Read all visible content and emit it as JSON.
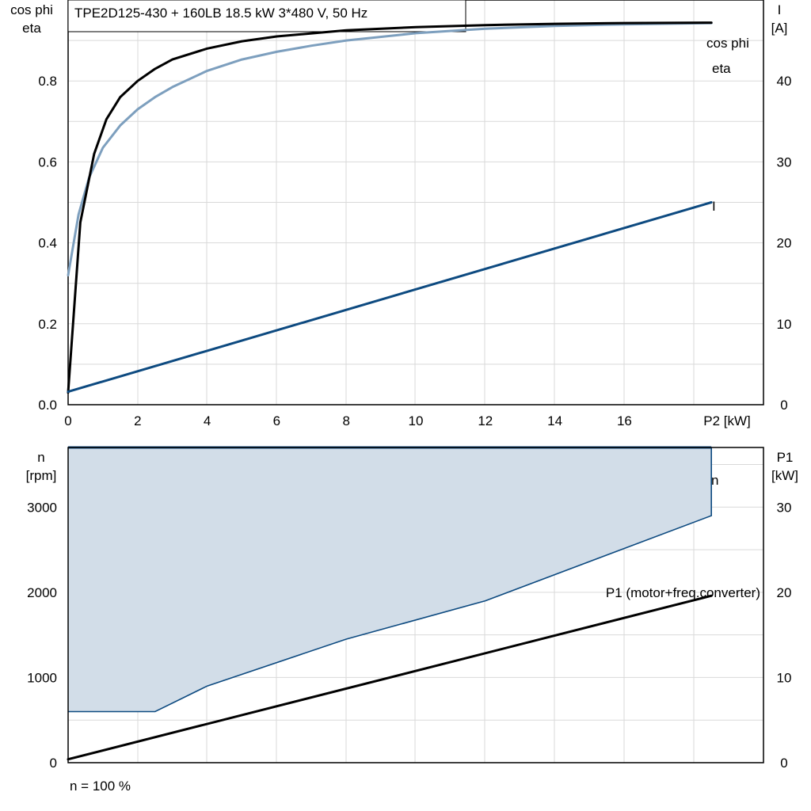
{
  "colors": {
    "cosphi": "#7d9fbe",
    "eta": "#000000",
    "current": "#0d4a80",
    "speed": "#0d4a80",
    "speed_fill": "#d2dde8",
    "p1": "#000000",
    "grid": "#d9d9d9"
  },
  "chart_data": [
    {
      "type": "line",
      "title": "TPE2D125-430 + 160LB   18.5 kW   3*480 V, 50 Hz",
      "xlabel": "P2 [kW]",
      "ylabel_left": [
        "cos phi",
        "eta"
      ],
      "ylabel_right": [
        "I",
        "[A]"
      ],
      "xlim": [
        0,
        20
      ],
      "ylim": [
        0,
        1.0
      ],
      "ylim_right": [
        0,
        50
      ],
      "x_ticks": [
        0,
        2,
        4,
        6,
        8,
        10,
        12,
        14,
        16
      ],
      "x_tick_labels": [
        "0",
        "2",
        "4",
        "6",
        "8",
        "10",
        "12",
        "14",
        "16"
      ],
      "y_ticks": [
        0.0,
        0.2,
        0.4,
        0.6,
        0.8
      ],
      "y_tick_labels": [
        "0.0",
        "0.2",
        "0.4",
        "0.6",
        "0.8"
      ],
      "y_right_ticks": [
        0,
        10,
        20,
        30,
        40
      ],
      "y_right_tick_labels": [
        "0",
        "10",
        "20",
        "30",
        "40"
      ],
      "grid": true,
      "series": [
        {
          "name": "cos phi",
          "axis": "left",
          "x": [
            0,
            0.3,
            0.6,
            1.0,
            1.5,
            2.0,
            2.5,
            3.0,
            4.0,
            5.0,
            6.0,
            7.0,
            8.0,
            10.0,
            12.0,
            14.0,
            16.0,
            18.5
          ],
          "y": [
            0.32,
            0.47,
            0.56,
            0.635,
            0.69,
            0.73,
            0.76,
            0.785,
            0.825,
            0.853,
            0.872,
            0.887,
            0.9,
            0.918,
            0.929,
            0.936,
            0.94,
            0.943
          ]
        },
        {
          "name": "eta",
          "axis": "left",
          "x": [
            0,
            0.35,
            0.75,
            1.1,
            1.5,
            2.0,
            2.5,
            3.0,
            4.0,
            5.0,
            6.0,
            8.0,
            10.0,
            12.0,
            14.0,
            16.0,
            18.5
          ],
          "y": [
            0.03,
            0.45,
            0.62,
            0.705,
            0.76,
            0.8,
            0.83,
            0.853,
            0.88,
            0.898,
            0.91,
            0.925,
            0.933,
            0.938,
            0.941,
            0.943,
            0.944
          ]
        },
        {
          "name": "I",
          "axis": "right",
          "x": [
            0,
            18.5
          ],
          "y": [
            1.6,
            25.0
          ]
        }
      ]
    },
    {
      "type": "area",
      "title": "",
      "xlabel": "n = 100 %",
      "ylabel_left": [
        "n",
        "[rpm]"
      ],
      "ylabel_right": [
        "P1",
        "[kW]"
      ],
      "xlim": [
        0,
        20
      ],
      "ylim": [
        0,
        3700
      ],
      "ylim_right": [
        0,
        37
      ],
      "y_ticks": [
        0,
        1000,
        2000,
        3000
      ],
      "y_tick_labels": [
        "0",
        "1000",
        "2000",
        "3000"
      ],
      "y_right_ticks": [
        0,
        10,
        20,
        30
      ],
      "y_right_tick_labels": [
        "0",
        "10",
        "20",
        "30"
      ],
      "grid": true,
      "series": [
        {
          "name": "n",
          "axis": "left",
          "kind": "max_speed_line",
          "x": [
            0,
            18.5
          ],
          "y": [
            3700,
            3700
          ]
        },
        {
          "name": "",
          "axis": "left",
          "kind": "operating_range_lower_bound",
          "x": [
            0,
            2.5,
            4.0,
            8.0,
            12.0,
            18.5
          ],
          "y": [
            600,
            600,
            900,
            1450,
            1900,
            2900
          ]
        },
        {
          "name": "P1 (motor+freq.converter)",
          "axis": "right",
          "x": [
            0,
            18.5
          ],
          "y": [
            0.4,
            19.6
          ]
        }
      ]
    }
  ]
}
